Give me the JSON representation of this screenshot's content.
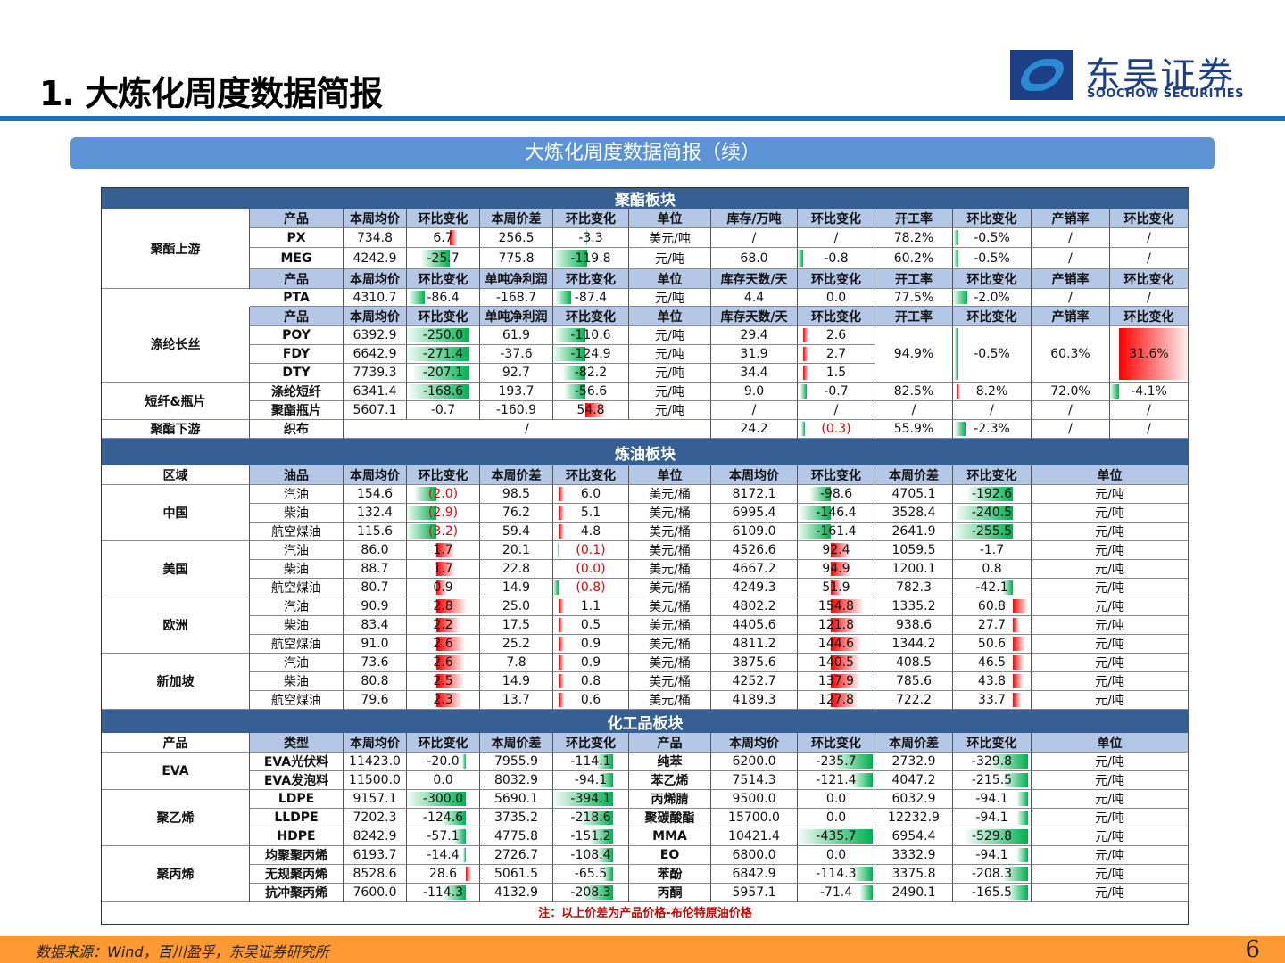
{
  "header": {
    "title": "1. 大炼化周度数据简报",
    "logo_cn": "东吴证券",
    "logo_en": "SOOCHOW SECURITIES",
    "subtitle": "大炼化周度数据简报（续）"
  },
  "polyester": {
    "section": "聚酯板块",
    "upstream_label": "聚酯上游",
    "header1": [
      "产品",
      "本周均价",
      "环比变化",
      "本周价差",
      "环比变化",
      "单位",
      "库存/万吨",
      "环比变化",
      "开工率",
      "环比变化",
      "产销率",
      "环比变化"
    ],
    "rows1": [
      [
        "PX",
        "734.8",
        "6.7",
        "256.5",
        "-3.3",
        "美元/吨",
        "/",
        "/",
        "78.2%",
        "-0.5%",
        "/",
        "/"
      ],
      [
        "MEG",
        "4242.9",
        "-25.7",
        "775.8",
        "-119.8",
        "元/吨",
        "68.0",
        "-0.8",
        "60.2%",
        "-0.5%",
        "/",
        "/"
      ]
    ],
    "header2": [
      "产品",
      "本周均价",
      "环比变化",
      "单吨净利润",
      "环比变化",
      "单位",
      "库存天数/天",
      "环比变化",
      "开工率",
      "环比变化",
      "产销率",
      "环比变化"
    ],
    "rows2": [
      [
        "PTA",
        "4310.7",
        "-86.4",
        "-168.7",
        "-87.4",
        "元/吨",
        "4.4",
        "0.0",
        "77.5%",
        "-2.0%",
        "/",
        "/"
      ]
    ],
    "filament_label": "涤纶长丝",
    "header3": [
      "产品",
      "本周均价",
      "环比变化",
      "单吨净利润",
      "环比变化",
      "单位",
      "库存天数/天",
      "环比变化",
      "开工率",
      "环比变化",
      "产销率",
      "环比变化"
    ],
    "rows3": [
      [
        "POY",
        "6392.9",
        "-250.0",
        "61.9",
        "-110.6",
        "元/吨",
        "29.4",
        "2.6"
      ],
      [
        "FDY",
        "6642.9",
        "-271.4",
        "-37.6",
        "-124.9",
        "元/吨",
        "31.9",
        "2.7"
      ],
      [
        "DTY",
        "7739.3",
        "-207.1",
        "92.7",
        "-82.2",
        "元/吨",
        "34.4",
        "1.5"
      ]
    ],
    "filament_merged": {
      "operating_rate": "94.9%",
      "operating_change": "-0.5%",
      "sell_rate": "60.3%",
      "sell_change": "31.6%"
    },
    "staple_label": "短纤&瓶片",
    "rows4": [
      [
        "涤纶短纤",
        "6341.4",
        "-168.6",
        "193.7",
        "-56.6",
        "元/吨",
        "9.0",
        "-0.7",
        "82.5%",
        "8.2%",
        "72.0%",
        "-4.1%"
      ],
      [
        "聚酯瓶片",
        "5607.1",
        "-0.7",
        "-160.9",
        "54.8",
        "元/吨",
        "/",
        "/",
        "/",
        "/",
        "/",
        "/"
      ]
    ],
    "downstream_label": "聚酯下游",
    "rows5": [
      "织布",
      "/",
      "24.2",
      "(0.3)",
      "55.9%",
      "-2.3%",
      "/",
      "/"
    ]
  },
  "refining": {
    "section": "炼油板块",
    "header": [
      "区域",
      "油品",
      "本周均价",
      "环比变化",
      "本周价差",
      "环比变化",
      "单位",
      "本周均价",
      "环比变化",
      "本周价差",
      "环比变化",
      "单位"
    ],
    "regions": [
      {
        "name": "中国",
        "rows": [
          [
            "汽油",
            "154.6",
            "(2.0)",
            "98.5",
            "6.0",
            "美元/桶",
            "8172.1",
            "-98.6",
            "4705.1",
            "-192.6",
            "元/吨"
          ],
          [
            "柴油",
            "132.4",
            "(2.9)",
            "76.2",
            "5.1",
            "美元/桶",
            "6995.4",
            "-146.4",
            "3528.4",
            "-240.5",
            "元/吨"
          ],
          [
            "航空煤油",
            "115.6",
            "(3.2)",
            "59.4",
            "4.8",
            "美元/桶",
            "6109.0",
            "-161.4",
            "2641.9",
            "-255.5",
            "元/吨"
          ]
        ]
      },
      {
        "name": "美国",
        "rows": [
          [
            "汽油",
            "86.0",
            "1.7",
            "20.1",
            "(0.1)",
            "美元/桶",
            "4526.6",
            "92.4",
            "1059.5",
            "-1.7",
            "元/吨"
          ],
          [
            "柴油",
            "88.7",
            "1.7",
            "22.8",
            "(0.0)",
            "美元/桶",
            "4667.2",
            "94.9",
            "1200.1",
            "0.8",
            "元/吨"
          ],
          [
            "航空煤油",
            "80.7",
            "0.9",
            "14.9",
            "(0.8)",
            "美元/桶",
            "4249.3",
            "51.9",
            "782.3",
            "-42.1",
            "元/吨"
          ]
        ]
      },
      {
        "name": "欧洲",
        "rows": [
          [
            "汽油",
            "90.9",
            "2.8",
            "25.0",
            "1.1",
            "美元/桶",
            "4802.2",
            "154.8",
            "1335.2",
            "60.8",
            "元/吨"
          ],
          [
            "柴油",
            "83.4",
            "2.2",
            "17.5",
            "0.5",
            "美元/桶",
            "4405.6",
            "121.8",
            "938.6",
            "27.7",
            "元/吨"
          ],
          [
            "航空煤油",
            "91.0",
            "2.6",
            "25.2",
            "0.9",
            "美元/桶",
            "4811.2",
            "144.6",
            "1344.2",
            "50.6",
            "元/吨"
          ]
        ]
      },
      {
        "name": "新加坡",
        "rows": [
          [
            "汽油",
            "73.6",
            "2.6",
            "7.8",
            "0.9",
            "美元/桶",
            "3875.6",
            "140.5",
            "408.5",
            "46.5",
            "元/吨"
          ],
          [
            "柴油",
            "80.8",
            "2.5",
            "14.9",
            "0.8",
            "美元/桶",
            "4252.7",
            "137.9",
            "785.6",
            "43.8",
            "元/吨"
          ],
          [
            "航空煤油",
            "79.6",
            "2.3",
            "13.7",
            "0.6",
            "美元/桶",
            "4189.3",
            "127.8",
            "722.2",
            "33.7",
            "元/吨"
          ]
        ]
      }
    ]
  },
  "chemicals": {
    "section": "化工品板块",
    "header": [
      "产品",
      "类型",
      "本周均价",
      "环比变化",
      "本周价差",
      "环比变化",
      "产品",
      "本周均价",
      "环比变化",
      "本周价差",
      "环比变化",
      "单位"
    ],
    "groups": [
      {
        "name": "EVA",
        "rows": [
          [
            "EVA光伏料",
            "11423.0",
            "-20.0",
            "7955.9",
            "-114.1",
            "纯苯",
            "6200.0",
            "-235.7",
            "2732.9",
            "-329.8",
            "元/吨"
          ],
          [
            "EVA发泡料",
            "11500.0",
            "0.0",
            "8032.9",
            "-94.1",
            "苯乙烯",
            "7514.3",
            "-121.4",
            "4047.2",
            "-215.5",
            "元/吨"
          ]
        ]
      },
      {
        "name": "聚乙烯",
        "rows": [
          [
            "LDPE",
            "9157.1",
            "-300.0",
            "5690.1",
            "-394.1",
            "丙烯腈",
            "9500.0",
            "0.0",
            "6032.9",
            "-94.1",
            "元/吨"
          ],
          [
            "LLDPE",
            "7202.3",
            "-124.6",
            "3735.2",
            "-218.6",
            "聚碳酸酯",
            "15700.0",
            "0.0",
            "12232.9",
            "-94.1",
            "元/吨"
          ],
          [
            "HDPE",
            "8242.9",
            "-57.1",
            "4775.8",
            "-151.2",
            "MMA",
            "10421.4",
            "-435.7",
            "6954.4",
            "-529.8",
            "元/吨"
          ]
        ]
      },
      {
        "name": "聚丙烯",
        "rows": [
          [
            "均聚聚丙烯",
            "6193.7",
            "-14.4",
            "2726.7",
            "-108.4",
            "EO",
            "6800.0",
            "0.0",
            "3332.9",
            "-94.1",
            "元/吨"
          ],
          [
            "无规聚丙烯",
            "8528.6",
            "28.6",
            "5061.5",
            "-65.5",
            "苯酚",
            "6842.9",
            "-114.3",
            "3375.8",
            "-208.3",
            "元/吨"
          ],
          [
            "抗冲聚丙烯",
            "7600.0",
            "-114.3",
            "4132.9",
            "-208.3",
            "丙酮",
            "5957.1",
            "-71.4",
            "2490.1",
            "-165.5",
            "元/吨"
          ]
        ]
      }
    ],
    "note": "注：以上价差为产品价格-布伦特原油价格"
  },
  "footer": {
    "source": "数据来源：Wind，百川盈孚，东吴证券研究所",
    "page": "6"
  },
  "colors": {
    "title_line": "#1a6fbf",
    "subtitle_bar": "#5b93d6",
    "section_bar": "#365f94",
    "header_cell": "#b4c7e7",
    "positive_bar": "#ff0000",
    "negative_bar": "#00b050",
    "footer": "#ff9933",
    "note": "#cc0000"
  }
}
